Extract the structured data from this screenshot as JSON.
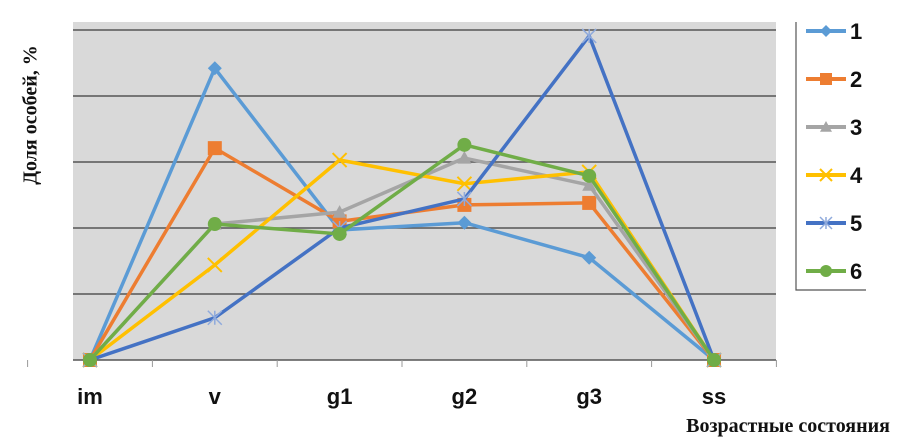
{
  "chart_data": {
    "type": "line",
    "title": "",
    "xlabel": "Возрастные состояния",
    "ylabel": "Доля особей, %",
    "categories": [
      "im",
      "v",
      "g1",
      "g2",
      "g3",
      "ss"
    ],
    "ylim": [
      0,
      5
    ],
    "y_tick_labels_shown": false,
    "grid": true,
    "legend_position": "right",
    "series": [
      {
        "name": "1",
        "color": "#5b9bd5",
        "marker": "diamond",
        "values": [
          0,
          4.42,
          1.97,
          2.08,
          1.55,
          0
        ]
      },
      {
        "name": "2",
        "color": "#ed7d31",
        "marker": "square",
        "values": [
          0,
          3.21,
          2.1,
          2.35,
          2.38,
          0
        ]
      },
      {
        "name": "3",
        "color": "#a5a5a5",
        "marker": "triangle",
        "values": [
          0,
          2.06,
          2.24,
          3.06,
          2.65,
          0
        ]
      },
      {
        "name": "4",
        "color": "#ffc000",
        "marker": "x",
        "values": [
          0,
          1.44,
          3.03,
          2.67,
          2.85,
          0
        ]
      },
      {
        "name": "5",
        "color": "#4472c4",
        "marker": "star",
        "values": [
          0,
          0.64,
          2.0,
          2.44,
          4.91,
          0
        ]
      },
      {
        "name": "6",
        "color": "#70ad47",
        "marker": "circle",
        "values": [
          0,
          2.06,
          1.91,
          3.26,
          2.79,
          0
        ]
      }
    ]
  }
}
